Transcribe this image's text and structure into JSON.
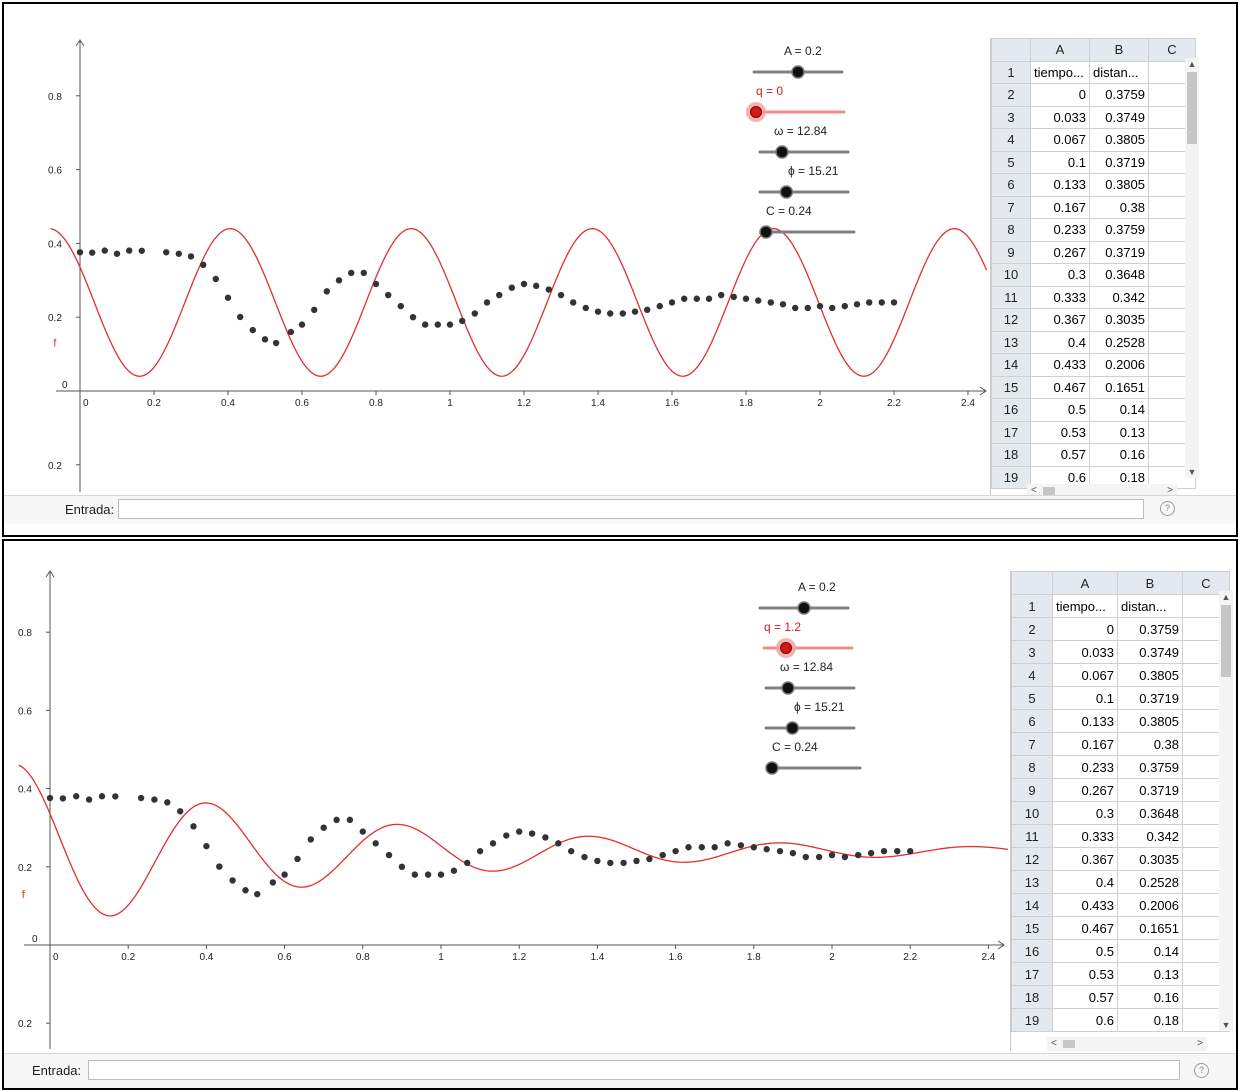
{
  "colors": {
    "curve": "#e03030",
    "point": "#333333",
    "axis": "#555555",
    "slider_track": "#808080",
    "slider_track_active": "#f28c8c",
    "knob_active": "#d41818",
    "label_active": "#d41818"
  },
  "common": {
    "input_label": "Entrada:",
    "input_value": "",
    "help_icon": "help-icon",
    "function_label": "f",
    "origin_label": "0",
    "below_zero_label": "0.2",
    "x_ticks": [
      0,
      0.2,
      0.4,
      0.6,
      0.8,
      1,
      1.2,
      1.4,
      1.6,
      1.8,
      2,
      2.2,
      2.4
    ],
    "y_ticks": [
      0.2,
      0.4,
      0.6,
      0.8
    ],
    "spreadsheet": {
      "columns": [
        "A",
        "B",
        "C"
      ],
      "rows": [
        {
          "n": "1",
          "a": "tiempo...",
          "b": "distan..."
        },
        {
          "n": "2",
          "a": "0",
          "b": "0.3759"
        },
        {
          "n": "3",
          "a": "0.033",
          "b": "0.3749"
        },
        {
          "n": "4",
          "a": "0.067",
          "b": "0.3805"
        },
        {
          "n": "5",
          "a": "0.1",
          "b": "0.3719"
        },
        {
          "n": "6",
          "a": "0.133",
          "b": "0.3805"
        },
        {
          "n": "7",
          "a": "0.167",
          "b": "0.38"
        },
        {
          "n": "8",
          "a": "0.233",
          "b": "0.3759"
        },
        {
          "n": "9",
          "a": "0.267",
          "b": "0.3719"
        },
        {
          "n": "10",
          "a": "0.3",
          "b": "0.3648"
        },
        {
          "n": "11",
          "a": "0.333",
          "b": "0.342"
        },
        {
          "n": "12",
          "a": "0.367",
          "b": "0.3035"
        },
        {
          "n": "13",
          "a": "0.4",
          "b": "0.2528"
        },
        {
          "n": "14",
          "a": "0.433",
          "b": "0.2006"
        },
        {
          "n": "15",
          "a": "0.467",
          "b": "0.1651"
        },
        {
          "n": "16",
          "a": "0.5",
          "b": "0.14"
        },
        {
          "n": "17",
          "a": "0.53",
          "b": "0.13"
        },
        {
          "n": "18",
          "a": "0.57",
          "b": "0.16"
        },
        {
          "n": "19",
          "a": "0.6",
          "b": "0.18"
        }
      ]
    }
  },
  "chart_data": [
    {
      "type": "scatter",
      "panel": "top",
      "title": "",
      "xlim": [
        -0.08,
        2.45
      ],
      "ylim": [
        -0.28,
        0.95
      ],
      "sliders": [
        {
          "label": "A = 0.2",
          "value": 0.2,
          "level": 0.5,
          "active": false
        },
        {
          "label": "q = 0",
          "value": 0,
          "level": 0.0,
          "active": true
        },
        {
          "label": "ω = 12.84",
          "value": 12.84,
          "level": 0.25,
          "active": false
        },
        {
          "label": "ϕ = 15.21",
          "value": 15.21,
          "level": 0.3,
          "active": false
        },
        {
          "label": "C = 0.24",
          "value": 0.24,
          "level": 0.0,
          "active": false
        }
      ],
      "curve": {
        "name": "f",
        "A": 0.2,
        "q": 0,
        "omega": 12.84,
        "phi": 15.21,
        "C": 0.24,
        "x_range": [
          -0.08,
          2.45
        ]
      },
      "points": {
        "x": [
          0,
          0.033,
          0.067,
          0.1,
          0.133,
          0.167,
          0.233,
          0.267,
          0.3,
          0.333,
          0.367,
          0.4,
          0.433,
          0.467,
          0.5,
          0.53,
          0.57,
          0.6,
          0.633,
          0.667,
          0.7,
          0.733,
          0.767,
          0.8,
          0.833,
          0.867,
          0.9,
          0.933,
          0.967,
          1.0,
          1.033,
          1.067,
          1.1,
          1.133,
          1.167,
          1.2,
          1.233,
          1.267,
          1.3,
          1.333,
          1.367,
          1.4,
          1.433,
          1.467,
          1.5,
          1.533,
          1.567,
          1.6,
          1.633,
          1.667,
          1.7,
          1.733,
          1.767,
          1.8,
          1.833,
          1.867,
          1.9,
          1.933,
          1.967,
          2.0,
          2.033,
          2.067,
          2.1,
          2.133,
          2.167,
          2.2
        ],
        "y": [
          0.3759,
          0.3749,
          0.3805,
          0.3719,
          0.3805,
          0.38,
          0.3759,
          0.3719,
          0.3648,
          0.342,
          0.3035,
          0.2528,
          0.2006,
          0.1651,
          0.14,
          0.13,
          0.16,
          0.18,
          0.22,
          0.27,
          0.3,
          0.32,
          0.32,
          0.29,
          0.26,
          0.23,
          0.2,
          0.18,
          0.18,
          0.18,
          0.19,
          0.21,
          0.24,
          0.26,
          0.28,
          0.29,
          0.285,
          0.275,
          0.26,
          0.24,
          0.225,
          0.215,
          0.21,
          0.21,
          0.215,
          0.22,
          0.23,
          0.24,
          0.25,
          0.25,
          0.25,
          0.26,
          0.255,
          0.25,
          0.245,
          0.24,
          0.235,
          0.225,
          0.225,
          0.23,
          0.225,
          0.23,
          0.235,
          0.24,
          0.24,
          0.24
        ]
      }
    },
    {
      "type": "scatter",
      "panel": "bottom",
      "title": "",
      "xlim": [
        -0.08,
        2.45
      ],
      "ylim": [
        -0.28,
        0.95
      ],
      "sliders": [
        {
          "label": "A = 0.2",
          "value": 0.2,
          "level": 0.5,
          "active": false
        },
        {
          "label": "q = 1.2",
          "value": 1.2,
          "level": 0.25,
          "active": true
        },
        {
          "label": "ω = 12.84",
          "value": 12.84,
          "level": 0.25,
          "active": false
        },
        {
          "label": "ϕ = 15.21",
          "value": 15.21,
          "level": 0.3,
          "active": false
        },
        {
          "label": "C = 0.24",
          "value": 0.24,
          "level": 0.0,
          "active": false
        }
      ],
      "curve": {
        "name": "f",
        "A": 0.2,
        "q": 1.2,
        "omega": 12.84,
        "phi": 15.21,
        "C": 0.24,
        "x_range": [
          -0.08,
          2.45
        ]
      },
      "points": {
        "x": [
          0,
          0.033,
          0.067,
          0.1,
          0.133,
          0.167,
          0.233,
          0.267,
          0.3,
          0.333,
          0.367,
          0.4,
          0.433,
          0.467,
          0.5,
          0.53,
          0.57,
          0.6,
          0.633,
          0.667,
          0.7,
          0.733,
          0.767,
          0.8,
          0.833,
          0.867,
          0.9,
          0.933,
          0.967,
          1.0,
          1.033,
          1.067,
          1.1,
          1.133,
          1.167,
          1.2,
          1.233,
          1.267,
          1.3,
          1.333,
          1.367,
          1.4,
          1.433,
          1.467,
          1.5,
          1.533,
          1.567,
          1.6,
          1.633,
          1.667,
          1.7,
          1.733,
          1.767,
          1.8,
          1.833,
          1.867,
          1.9,
          1.933,
          1.967,
          2.0,
          2.033,
          2.067,
          2.1,
          2.133,
          2.167,
          2.2
        ],
        "y": [
          0.3759,
          0.3749,
          0.3805,
          0.3719,
          0.3805,
          0.38,
          0.3759,
          0.3719,
          0.3648,
          0.342,
          0.3035,
          0.2528,
          0.2006,
          0.1651,
          0.14,
          0.13,
          0.16,
          0.18,
          0.22,
          0.27,
          0.3,
          0.32,
          0.32,
          0.29,
          0.26,
          0.23,
          0.2,
          0.18,
          0.18,
          0.18,
          0.19,
          0.21,
          0.24,
          0.26,
          0.28,
          0.29,
          0.285,
          0.275,
          0.26,
          0.24,
          0.225,
          0.215,
          0.21,
          0.21,
          0.215,
          0.22,
          0.23,
          0.24,
          0.25,
          0.25,
          0.25,
          0.26,
          0.255,
          0.25,
          0.245,
          0.24,
          0.235,
          0.225,
          0.225,
          0.23,
          0.225,
          0.23,
          0.235,
          0.24,
          0.24,
          0.24
        ]
      }
    }
  ]
}
